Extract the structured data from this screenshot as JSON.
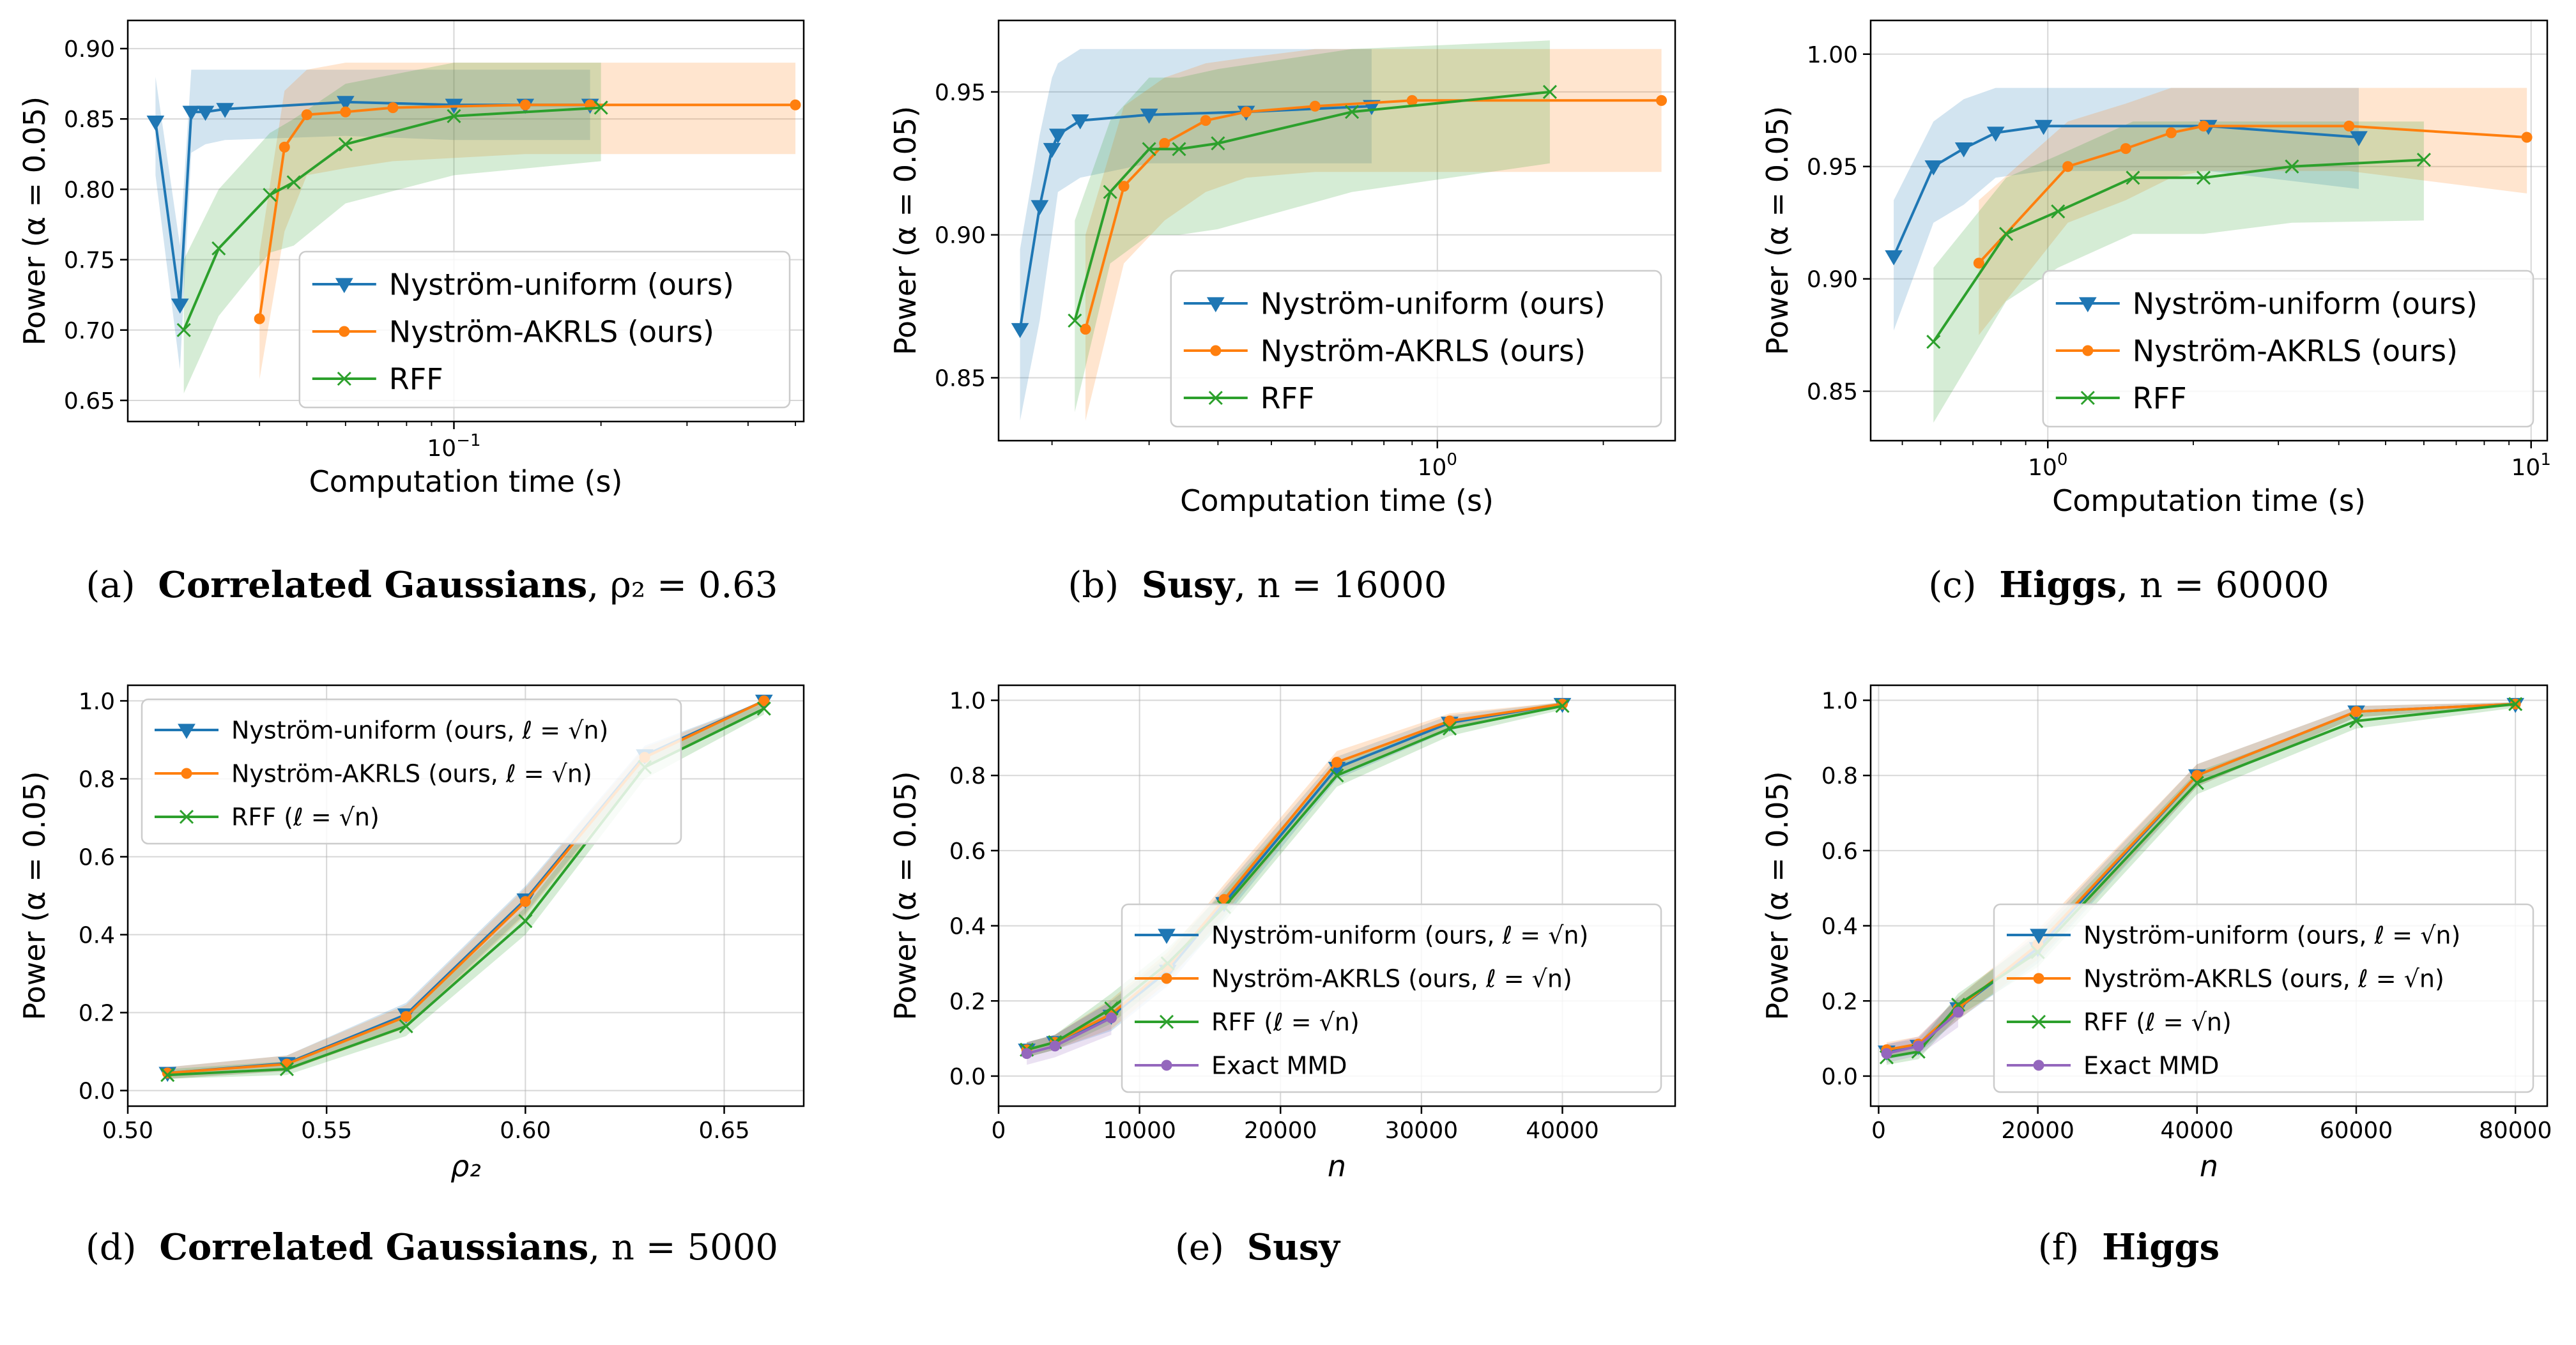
{
  "chart_data": [
    {
      "type": "line",
      "panel": "a",
      "caption": {
        "letter": "(a)",
        "bold": "Correlated Gaussians",
        "rest": ", ρ₂ = 0.63"
      },
      "xscale": "log",
      "xlim": [
        0.0215,
        0.52
      ],
      "xticks": [
        {
          "v": 0.1,
          "base": "10",
          "exp": "−1"
        }
      ],
      "ylim": [
        0.635,
        0.92
      ],
      "yticks": [
        0.65,
        0.7,
        0.75,
        0.8,
        0.85,
        0.9
      ],
      "ydec": 2,
      "xlabel": "Computation time (s)",
      "ylabel": "Power (α = 0.05)",
      "legend": {
        "placement": "lower-right",
        "entries": [
          "Nyström-uniform (ours)",
          "Nyström-AKRLS (ours)",
          "RFF"
        ]
      },
      "series": [
        {
          "name": "Nyström-uniform (ours)",
          "color": "#1f77b4",
          "marker": "tri",
          "x": [
            0.0245,
            0.0275,
            0.029,
            0.031,
            0.034,
            0.06,
            0.1,
            0.14,
            0.19
          ],
          "y": [
            0.848,
            0.718,
            0.855,
            0.855,
            0.857,
            0.862,
            0.86,
            0.86,
            0.86
          ],
          "lo": [
            0.81,
            0.672,
            0.826,
            0.832,
            0.835,
            0.838,
            0.835,
            0.835,
            0.835
          ],
          "hi": [
            0.88,
            0.76,
            0.885,
            0.885,
            0.885,
            0.885,
            0.885,
            0.885,
            0.885
          ]
        },
        {
          "name": "Nyström-AKRLS (ours)",
          "color": "#ff7f0e",
          "marker": "dot",
          "x": [
            0.04,
            0.045,
            0.05,
            0.06,
            0.075,
            0.14,
            0.19,
            0.5
          ],
          "y": [
            0.708,
            0.83,
            0.853,
            0.855,
            0.858,
            0.86,
            0.86,
            0.86
          ],
          "lo": [
            0.665,
            0.77,
            0.81,
            0.815,
            0.82,
            0.825,
            0.825,
            0.825
          ],
          "hi": [
            0.755,
            0.87,
            0.885,
            0.89,
            0.89,
            0.89,
            0.89,
            0.89
          ]
        },
        {
          "name": "RFF",
          "color": "#2ca02c",
          "marker": "x",
          "x": [
            0.028,
            0.033,
            0.042,
            0.047,
            0.06,
            0.1,
            0.2
          ],
          "y": [
            0.7,
            0.758,
            0.796,
            0.805,
            0.832,
            0.852,
            0.858
          ],
          "lo": [
            0.655,
            0.71,
            0.755,
            0.76,
            0.79,
            0.81,
            0.82
          ],
          "hi": [
            0.75,
            0.8,
            0.84,
            0.85,
            0.875,
            0.89,
            0.89
          ]
        }
      ]
    },
    {
      "type": "line",
      "panel": "b",
      "caption": {
        "letter": "(b)",
        "bold": "Susy",
        "rest": ", n = 16000"
      },
      "xscale": "log",
      "xlim": [
        0.16,
        2.7
      ],
      "xticks": [
        {
          "v": 1.0,
          "base": "10",
          "exp": "0"
        }
      ],
      "ylim": [
        0.828,
        0.975
      ],
      "yticks": [
        0.85,
        0.9,
        0.95
      ],
      "ydec": 2,
      "xlabel": "Computation time (s)",
      "ylabel": "Power (α = 0.05)",
      "legend": {
        "placement": "lower-right",
        "entries": [
          "Nyström-uniform (ours)",
          "Nyström-AKRLS (ours)",
          "RFF"
        ]
      },
      "series": [
        {
          "name": "Nyström-uniform (ours)",
          "color": "#1f77b4",
          "marker": "tri",
          "x": [
            0.175,
            0.19,
            0.2,
            0.205,
            0.225,
            0.3,
            0.45,
            0.76
          ],
          "y": [
            0.867,
            0.91,
            0.93,
            0.935,
            0.94,
            0.942,
            0.943,
            0.945
          ],
          "lo": [
            0.835,
            0.87,
            0.9,
            0.915,
            0.92,
            0.925,
            0.925,
            0.925
          ],
          "hi": [
            0.895,
            0.935,
            0.955,
            0.96,
            0.965,
            0.965,
            0.965,
            0.965
          ]
        },
        {
          "name": "Nyström-AKRLS (ours)",
          "color": "#ff7f0e",
          "marker": "dot",
          "x": [
            0.23,
            0.27,
            0.32,
            0.38,
            0.45,
            0.6,
            0.9,
            2.55
          ],
          "y": [
            0.867,
            0.917,
            0.932,
            0.94,
            0.943,
            0.945,
            0.947,
            0.947
          ],
          "lo": [
            0.835,
            0.89,
            0.905,
            0.915,
            0.92,
            0.922,
            0.922,
            0.922
          ],
          "hi": [
            0.9,
            0.945,
            0.955,
            0.96,
            0.962,
            0.965,
            0.965,
            0.965
          ]
        },
        {
          "name": "RFF",
          "color": "#2ca02c",
          "marker": "x",
          "x": [
            0.22,
            0.255,
            0.3,
            0.34,
            0.4,
            0.7,
            1.6
          ],
          "y": [
            0.87,
            0.915,
            0.93,
            0.93,
            0.932,
            0.943,
            0.95
          ],
          "lo": [
            0.838,
            0.89,
            0.9,
            0.9,
            0.902,
            0.915,
            0.925
          ],
          "hi": [
            0.905,
            0.94,
            0.955,
            0.955,
            0.958,
            0.965,
            0.968
          ]
        }
      ]
    },
    {
      "type": "line",
      "panel": "c",
      "caption": {
        "letter": "(c)",
        "bold": "Higgs",
        "rest": ", n = 60000"
      },
      "xscale": "log",
      "xlim": [
        0.43,
        10.8
      ],
      "xticks": [
        {
          "v": 1.0,
          "base": "10",
          "exp": "0"
        },
        {
          "v": 10.0,
          "base": "10",
          "exp": "1"
        }
      ],
      "ylim": [
        0.828,
        1.015
      ],
      "yticks": [
        0.85,
        0.9,
        0.95,
        1.0
      ],
      "ydec": 2,
      "xlabel": "Computation time (s)",
      "ylabel": "Power (α = 0.05)",
      "legend": {
        "placement": "lower-right",
        "entries": [
          "Nyström-uniform (ours)",
          "Nyström-AKRLS (ours)",
          "RFF"
        ]
      },
      "series": [
        {
          "name": "Nyström-uniform (ours)",
          "color": "#1f77b4",
          "marker": "tri",
          "x": [
            0.48,
            0.58,
            0.67,
            0.78,
            0.98,
            2.15,
            4.4
          ],
          "y": [
            0.91,
            0.95,
            0.958,
            0.965,
            0.968,
            0.968,
            0.963
          ],
          "lo": [
            0.877,
            0.925,
            0.933,
            0.945,
            0.948,
            0.948,
            0.94
          ],
          "hi": [
            0.935,
            0.97,
            0.98,
            0.985,
            0.985,
            0.985,
            0.985
          ]
        },
        {
          "name": "Nyström-AKRLS (ours)",
          "color": "#ff7f0e",
          "marker": "dot",
          "x": [
            0.72,
            1.1,
            1.45,
            1.8,
            2.1,
            4.2,
            9.8
          ],
          "y": [
            0.907,
            0.95,
            0.958,
            0.965,
            0.968,
            0.968,
            0.963
          ],
          "lo": [
            0.875,
            0.925,
            0.935,
            0.945,
            0.948,
            0.948,
            0.938
          ],
          "hi": [
            0.935,
            0.97,
            0.978,
            0.985,
            0.985,
            0.985,
            0.985
          ]
        },
        {
          "name": "RFF",
          "color": "#2ca02c",
          "marker": "x",
          "x": [
            0.58,
            0.82,
            1.05,
            1.5,
            2.1,
            3.2,
            6.0
          ],
          "y": [
            0.872,
            0.92,
            0.93,
            0.945,
            0.945,
            0.95,
            0.953
          ],
          "lo": [
            0.836,
            0.89,
            0.905,
            0.92,
            0.92,
            0.925,
            0.926
          ],
          "hi": [
            0.905,
            0.945,
            0.955,
            0.97,
            0.97,
            0.97,
            0.97
          ]
        }
      ]
    },
    {
      "type": "line",
      "panel": "d",
      "caption": {
        "letter": "(d)",
        "bold": "Correlated Gaussians",
        "rest": ", n = 5000"
      },
      "xscale": "linear",
      "xlim": [
        0.5,
        0.67
      ],
      "xticks": [
        0.5,
        0.55,
        0.6,
        0.65
      ],
      "xdec": 2,
      "ylim": [
        -0.04,
        1.04
      ],
      "yticks": [
        0.0,
        0.2,
        0.4,
        0.6,
        0.8,
        1.0
      ],
      "ydec": 1,
      "xlabel": "ρ₂",
      "ylabel": "Power (α = 0.05)",
      "legend": {
        "placement": "upper-left",
        "entries": [
          "Nyström-uniform (ours, ℓ = √n)",
          "Nyström-AKRLS (ours, ℓ = √n)",
          "RFF  (ℓ = √n)"
        ]
      },
      "series": [
        {
          "name": "Nyström-uniform (ours, ℓ = √n)",
          "color": "#1f77b4",
          "marker": "tri",
          "x": [
            0.51,
            0.54,
            0.57,
            0.6,
            0.63,
            0.66
          ],
          "y": [
            0.045,
            0.07,
            0.195,
            0.49,
            0.86,
            1.0
          ],
          "lo": [
            0.03,
            0.05,
            0.165,
            0.455,
            0.83,
            0.985
          ],
          "hi": [
            0.06,
            0.09,
            0.225,
            0.525,
            0.885,
            1.0
          ]
        },
        {
          "name": "Nyström-AKRLS (ours, ℓ = √n)",
          "color": "#ff7f0e",
          "marker": "dot",
          "x": [
            0.51,
            0.54,
            0.57,
            0.6,
            0.63,
            0.66
          ],
          "y": [
            0.045,
            0.068,
            0.19,
            0.485,
            0.855,
            1.0
          ],
          "lo": [
            0.03,
            0.05,
            0.16,
            0.45,
            0.825,
            0.985
          ],
          "hi": [
            0.06,
            0.09,
            0.22,
            0.52,
            0.88,
            1.0
          ]
        },
        {
          "name": "RFF  (ℓ = √n)",
          "color": "#2ca02c",
          "marker": "x",
          "x": [
            0.51,
            0.54,
            0.57,
            0.6,
            0.63,
            0.66
          ],
          "y": [
            0.04,
            0.055,
            0.165,
            0.435,
            0.83,
            0.98
          ],
          "lo": [
            0.03,
            0.04,
            0.14,
            0.4,
            0.8,
            0.965
          ],
          "hi": [
            0.055,
            0.075,
            0.195,
            0.47,
            0.86,
            0.995
          ]
        }
      ]
    },
    {
      "type": "line",
      "panel": "e",
      "caption": {
        "letter": "(e)",
        "bold": "Susy",
        "rest": ""
      },
      "xscale": "linear",
      "xlim": [
        0,
        48000
      ],
      "xticks": [
        0,
        10000,
        20000,
        30000,
        40000
      ],
      "xdec": 0,
      "ylim": [
        -0.08,
        1.04
      ],
      "yticks": [
        0.0,
        0.2,
        0.4,
        0.6,
        0.8,
        1.0
      ],
      "ydec": 1,
      "xlabel": "n",
      "ylabel": "Power (α = 0.05)",
      "legend": {
        "placement": "lower-right",
        "entries": [
          "Nyström-uniform (ours, ℓ = √n)",
          "Nyström-AKRLS (ours, ℓ = √n)",
          "RFF  (ℓ = √n)",
          "Exact MMD"
        ]
      },
      "series": [
        {
          "name": "Nyström-uniform (ours, ℓ = √n)",
          "color": "#1f77b4",
          "marker": "tri",
          "x": [
            2000,
            4000,
            8000,
            12000,
            16000,
            24000,
            32000,
            40000
          ],
          "y": [
            0.07,
            0.09,
            0.16,
            0.28,
            0.46,
            0.82,
            0.94,
            0.99
          ],
          "lo": [
            0.05,
            0.07,
            0.12,
            0.24,
            0.42,
            0.79,
            0.92,
            0.985
          ],
          "hi": [
            0.09,
            0.11,
            0.2,
            0.32,
            0.5,
            0.85,
            0.96,
            0.995
          ]
        },
        {
          "name": "Nyström-AKRLS (ours, ℓ = √n)",
          "color": "#ff7f0e",
          "marker": "dot",
          "x": [
            2000,
            4000,
            8000,
            12000,
            16000,
            24000,
            32000,
            40000
          ],
          "y": [
            0.07,
            0.09,
            0.165,
            0.29,
            0.47,
            0.835,
            0.945,
            0.99
          ],
          "lo": [
            0.05,
            0.07,
            0.125,
            0.25,
            0.43,
            0.805,
            0.925,
            0.985
          ],
          "hi": [
            0.09,
            0.11,
            0.205,
            0.33,
            0.51,
            0.865,
            0.965,
            0.995
          ]
        },
        {
          "name": "RFF  (ℓ = √n)",
          "color": "#2ca02c",
          "marker": "x",
          "x": [
            2000,
            4000,
            8000,
            12000,
            16000,
            24000,
            32000,
            40000
          ],
          "y": [
            0.07,
            0.09,
            0.18,
            0.3,
            0.45,
            0.8,
            0.925,
            0.985
          ],
          "lo": [
            0.05,
            0.07,
            0.14,
            0.26,
            0.41,
            0.77,
            0.905,
            0.975
          ],
          "hi": [
            0.09,
            0.11,
            0.22,
            0.34,
            0.49,
            0.83,
            0.945,
            0.995
          ]
        },
        {
          "name": "Exact MMD",
          "color": "#9467bd",
          "marker": "dot",
          "x": [
            2000,
            4000,
            8000
          ],
          "y": [
            0.06,
            0.08,
            0.155
          ],
          "lo": [
            0.03,
            0.05,
            0.11
          ],
          "hi": [
            0.09,
            0.11,
            0.2
          ]
        }
      ]
    },
    {
      "type": "line",
      "panel": "f",
      "caption": {
        "letter": "(f)",
        "bold": "Higgs",
        "rest": ""
      },
      "xscale": "linear",
      "xlim": [
        -1000,
        84000
      ],
      "xticks": [
        0,
        20000,
        40000,
        60000,
        80000
      ],
      "xdec": 0,
      "ylim": [
        -0.08,
        1.04
      ],
      "yticks": [
        0.0,
        0.2,
        0.4,
        0.6,
        0.8,
        1.0
      ],
      "ydec": 1,
      "xlabel": "n",
      "ylabel": "Power (α = 0.05)",
      "legend": {
        "placement": "lower-right",
        "entries": [
          "Nyström-uniform (ours, ℓ = √n)",
          "Nyström-AKRLS  (ours, ℓ = √n)",
          "RFF  (ℓ = √n)",
          "Exact MMD"
        ]
      },
      "series": [
        {
          "name": "Nyström-uniform (ours, ℓ = √n)",
          "color": "#1f77b4",
          "marker": "tri",
          "x": [
            1000,
            5000,
            10000,
            20000,
            40000,
            60000,
            80000
          ],
          "y": [
            0.065,
            0.08,
            0.18,
            0.34,
            0.8,
            0.97,
            0.99
          ],
          "lo": [
            0.045,
            0.06,
            0.15,
            0.3,
            0.77,
            0.955,
            0.985
          ],
          "hi": [
            0.085,
            0.1,
            0.21,
            0.38,
            0.83,
            0.985,
            0.995
          ]
        },
        {
          "name": "Nyström-AKRLS  (ours, ℓ = √n)",
          "color": "#ff7f0e",
          "marker": "dot",
          "x": [
            1000,
            5000,
            10000,
            20000,
            40000,
            60000,
            80000
          ],
          "y": [
            0.07,
            0.085,
            0.18,
            0.35,
            0.8,
            0.97,
            0.99
          ],
          "lo": [
            0.05,
            0.065,
            0.15,
            0.31,
            0.77,
            0.955,
            0.985
          ],
          "hi": [
            0.09,
            0.105,
            0.21,
            0.39,
            0.83,
            0.985,
            0.995
          ]
        },
        {
          "name": "RFF  (ℓ = √n)",
          "color": "#2ca02c",
          "marker": "x",
          "x": [
            1000,
            5000,
            10000,
            20000,
            40000,
            60000,
            80000
          ],
          "y": [
            0.05,
            0.065,
            0.19,
            0.33,
            0.78,
            0.945,
            0.99
          ],
          "lo": [
            0.03,
            0.045,
            0.16,
            0.29,
            0.75,
            0.925,
            0.98
          ],
          "hi": [
            0.07,
            0.085,
            0.22,
            0.37,
            0.81,
            0.965,
            0.995
          ]
        },
        {
          "name": "Exact MMD",
          "color": "#9467bd",
          "marker": "dot",
          "x": [
            1000,
            5000,
            10000
          ],
          "y": [
            0.06,
            0.08,
            0.17
          ],
          "lo": [
            0.035,
            0.055,
            0.13
          ],
          "hi": [
            0.085,
            0.105,
            0.21
          ]
        }
      ]
    }
  ]
}
